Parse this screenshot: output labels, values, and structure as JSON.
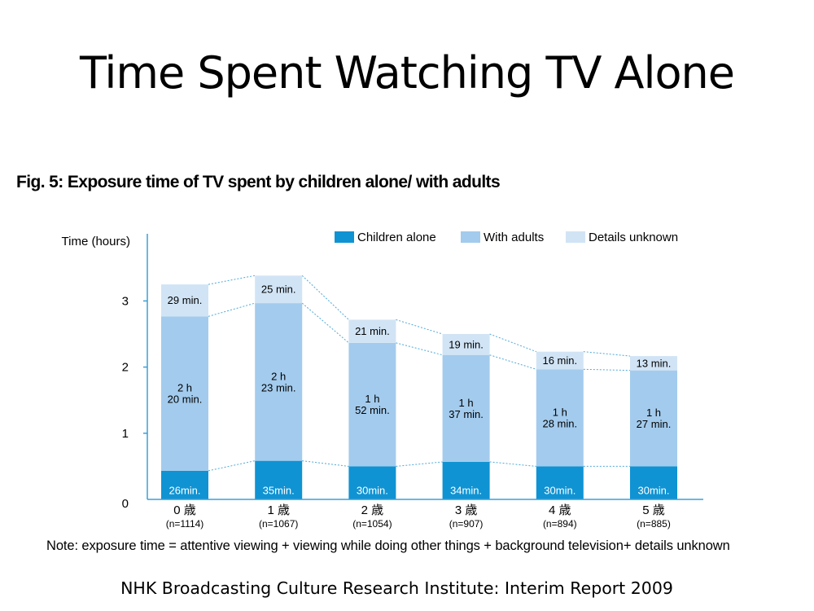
{
  "slide": {
    "title": "Time Spent Watching TV Alone",
    "figure_caption": "Fig. 5: Exposure time of TV spent by children alone/ with adults",
    "note": "Note: exposure time = attentive viewing + viewing while doing other things + background television+ details unknown",
    "source": "NHK Broadcasting Culture Research Institute:  Interim Report 2009"
  },
  "colors": {
    "children_alone": "#0f93d3",
    "with_adults": "#a3cbed",
    "details_unknown": "#d1e4f5",
    "axis": "#3a9fd8",
    "connector": "#4fa9d9"
  },
  "chart_data": {
    "type": "bar",
    "stacked": true,
    "ylabel": "Time (hours)",
    "ylim": [
      0,
      3.5
    ],
    "yticks": [
      0,
      1,
      2,
      3
    ],
    "categories": [
      "0 歳",
      "1 歳",
      "2 歳",
      "3 歳",
      "4 歳",
      "5 歳"
    ],
    "sample_sizes": [
      "(n=1114)",
      "(n=1067)",
      "(n=1054)",
      "(n=907)",
      "(n=894)",
      "(n=885)"
    ],
    "legend_position": "top-right",
    "series": [
      {
        "name": "Children alone",
        "values_minutes": [
          26,
          35,
          30,
          34,
          30,
          30
        ],
        "labels": [
          [
            "26min."
          ],
          [
            "35min."
          ],
          [
            "30min."
          ],
          [
            "34min."
          ],
          [
            "30min."
          ],
          [
            "30min."
          ]
        ]
      },
      {
        "name": "With adults",
        "values_minutes": [
          140,
          143,
          112,
          97,
          88,
          87
        ],
        "labels": [
          [
            "2 h",
            "20 min."
          ],
          [
            "2 h",
            "23 min."
          ],
          [
            "1 h",
            "52 min."
          ],
          [
            "1 h",
            "37 min."
          ],
          [
            "1 h",
            "28 min."
          ],
          [
            "1 h",
            "27 min."
          ]
        ]
      },
      {
        "name": "Details unknown",
        "values_minutes": [
          29,
          25,
          21,
          19,
          16,
          13
        ],
        "labels": [
          [
            "29 min."
          ],
          [
            "25 min."
          ],
          [
            "21 min."
          ],
          [
            "19 min."
          ],
          [
            "16 min."
          ],
          [
            "13 min."
          ]
        ]
      }
    ]
  }
}
